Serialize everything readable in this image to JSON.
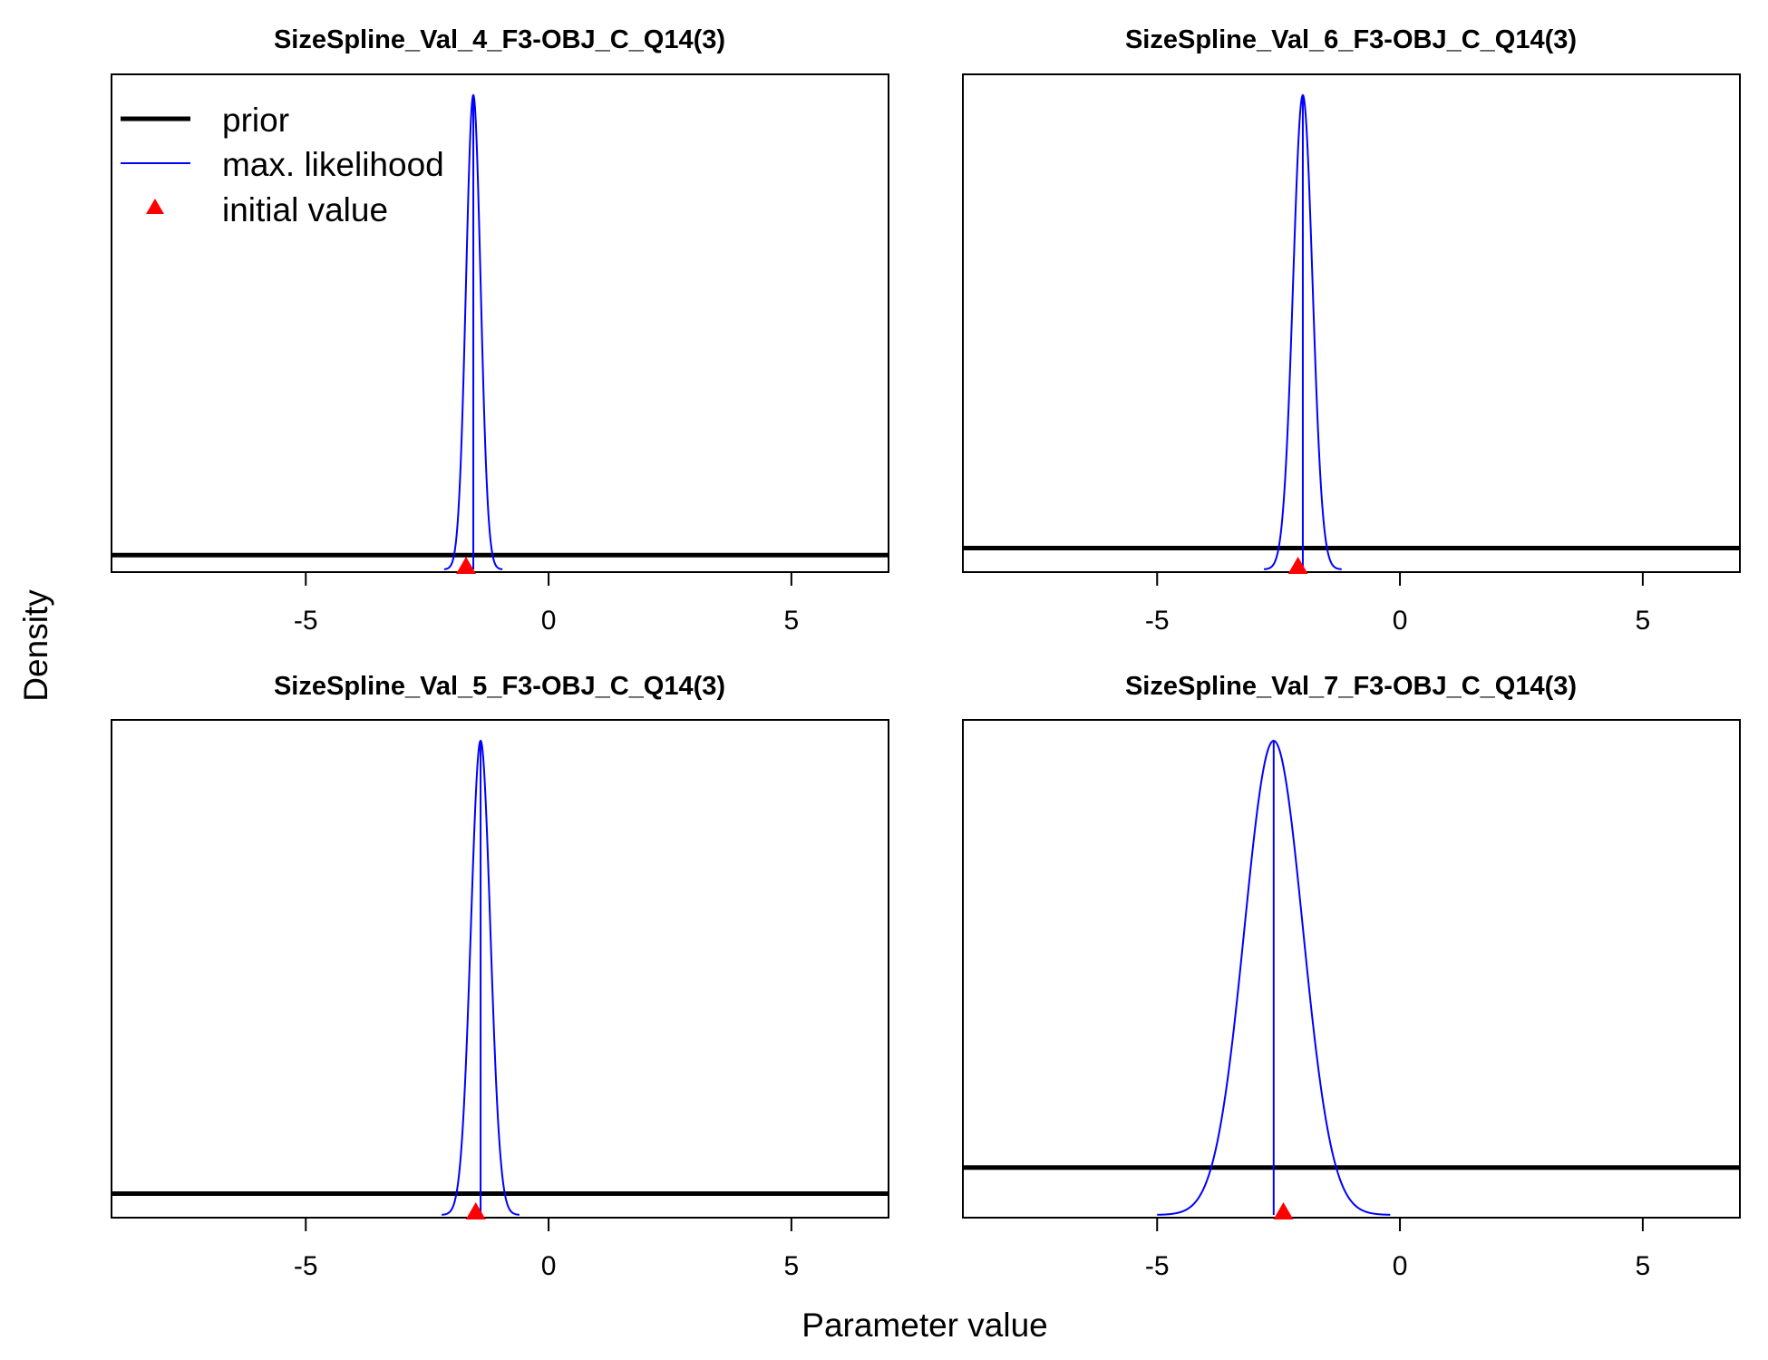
{
  "figure": {
    "xlabel": "Parameter value",
    "ylabel": "Density"
  },
  "legend": {
    "placement": "top-left of first panel",
    "items": [
      {
        "label": "prior",
        "style": "thick-line",
        "color": "#000000"
      },
      {
        "label": "max. likelihood",
        "style": "thin-line",
        "color": "#0000ff"
      },
      {
        "label": "initial value",
        "style": "triangle",
        "color": "#ff0000"
      }
    ]
  },
  "chart_data": [
    {
      "type": "line",
      "title": "SizeSpline_Val_4_F3-OBJ_C_Q14(3)",
      "xlim": [
        -9,
        7
      ],
      "xticks": [
        -5,
        0,
        5
      ],
      "mle": -1.55,
      "sd": 0.15,
      "initial_value": -1.7,
      "prior_density_rel": 0.03
    },
    {
      "type": "line",
      "title": "SizeSpline_Val_6_F3-OBJ_C_Q14(3)",
      "xlim": [
        -9,
        7
      ],
      "xticks": [
        -5,
        0,
        5
      ],
      "mle": -2.0,
      "sd": 0.2,
      "initial_value": -2.1,
      "prior_density_rel": 0.045
    },
    {
      "type": "line",
      "title": "SizeSpline_Val_5_F3-OBJ_C_Q14(3)",
      "xlim": [
        -9,
        7
      ],
      "xticks": [
        -5,
        0,
        5
      ],
      "mle": -1.4,
      "sd": 0.2,
      "initial_value": -1.5,
      "prior_density_rel": 0.045
    },
    {
      "type": "line",
      "title": "SizeSpline_Val_7_F3-OBJ_C_Q14(3)",
      "xlim": [
        -9,
        7
      ],
      "xticks": [
        -5,
        0,
        5
      ],
      "mle": -2.6,
      "sd": 0.6,
      "initial_value": -2.4,
      "prior_density_rel": 0.1
    }
  ],
  "colors": {
    "prior": "#000000",
    "mle": "#0000ff",
    "initial": "#ff0000"
  }
}
